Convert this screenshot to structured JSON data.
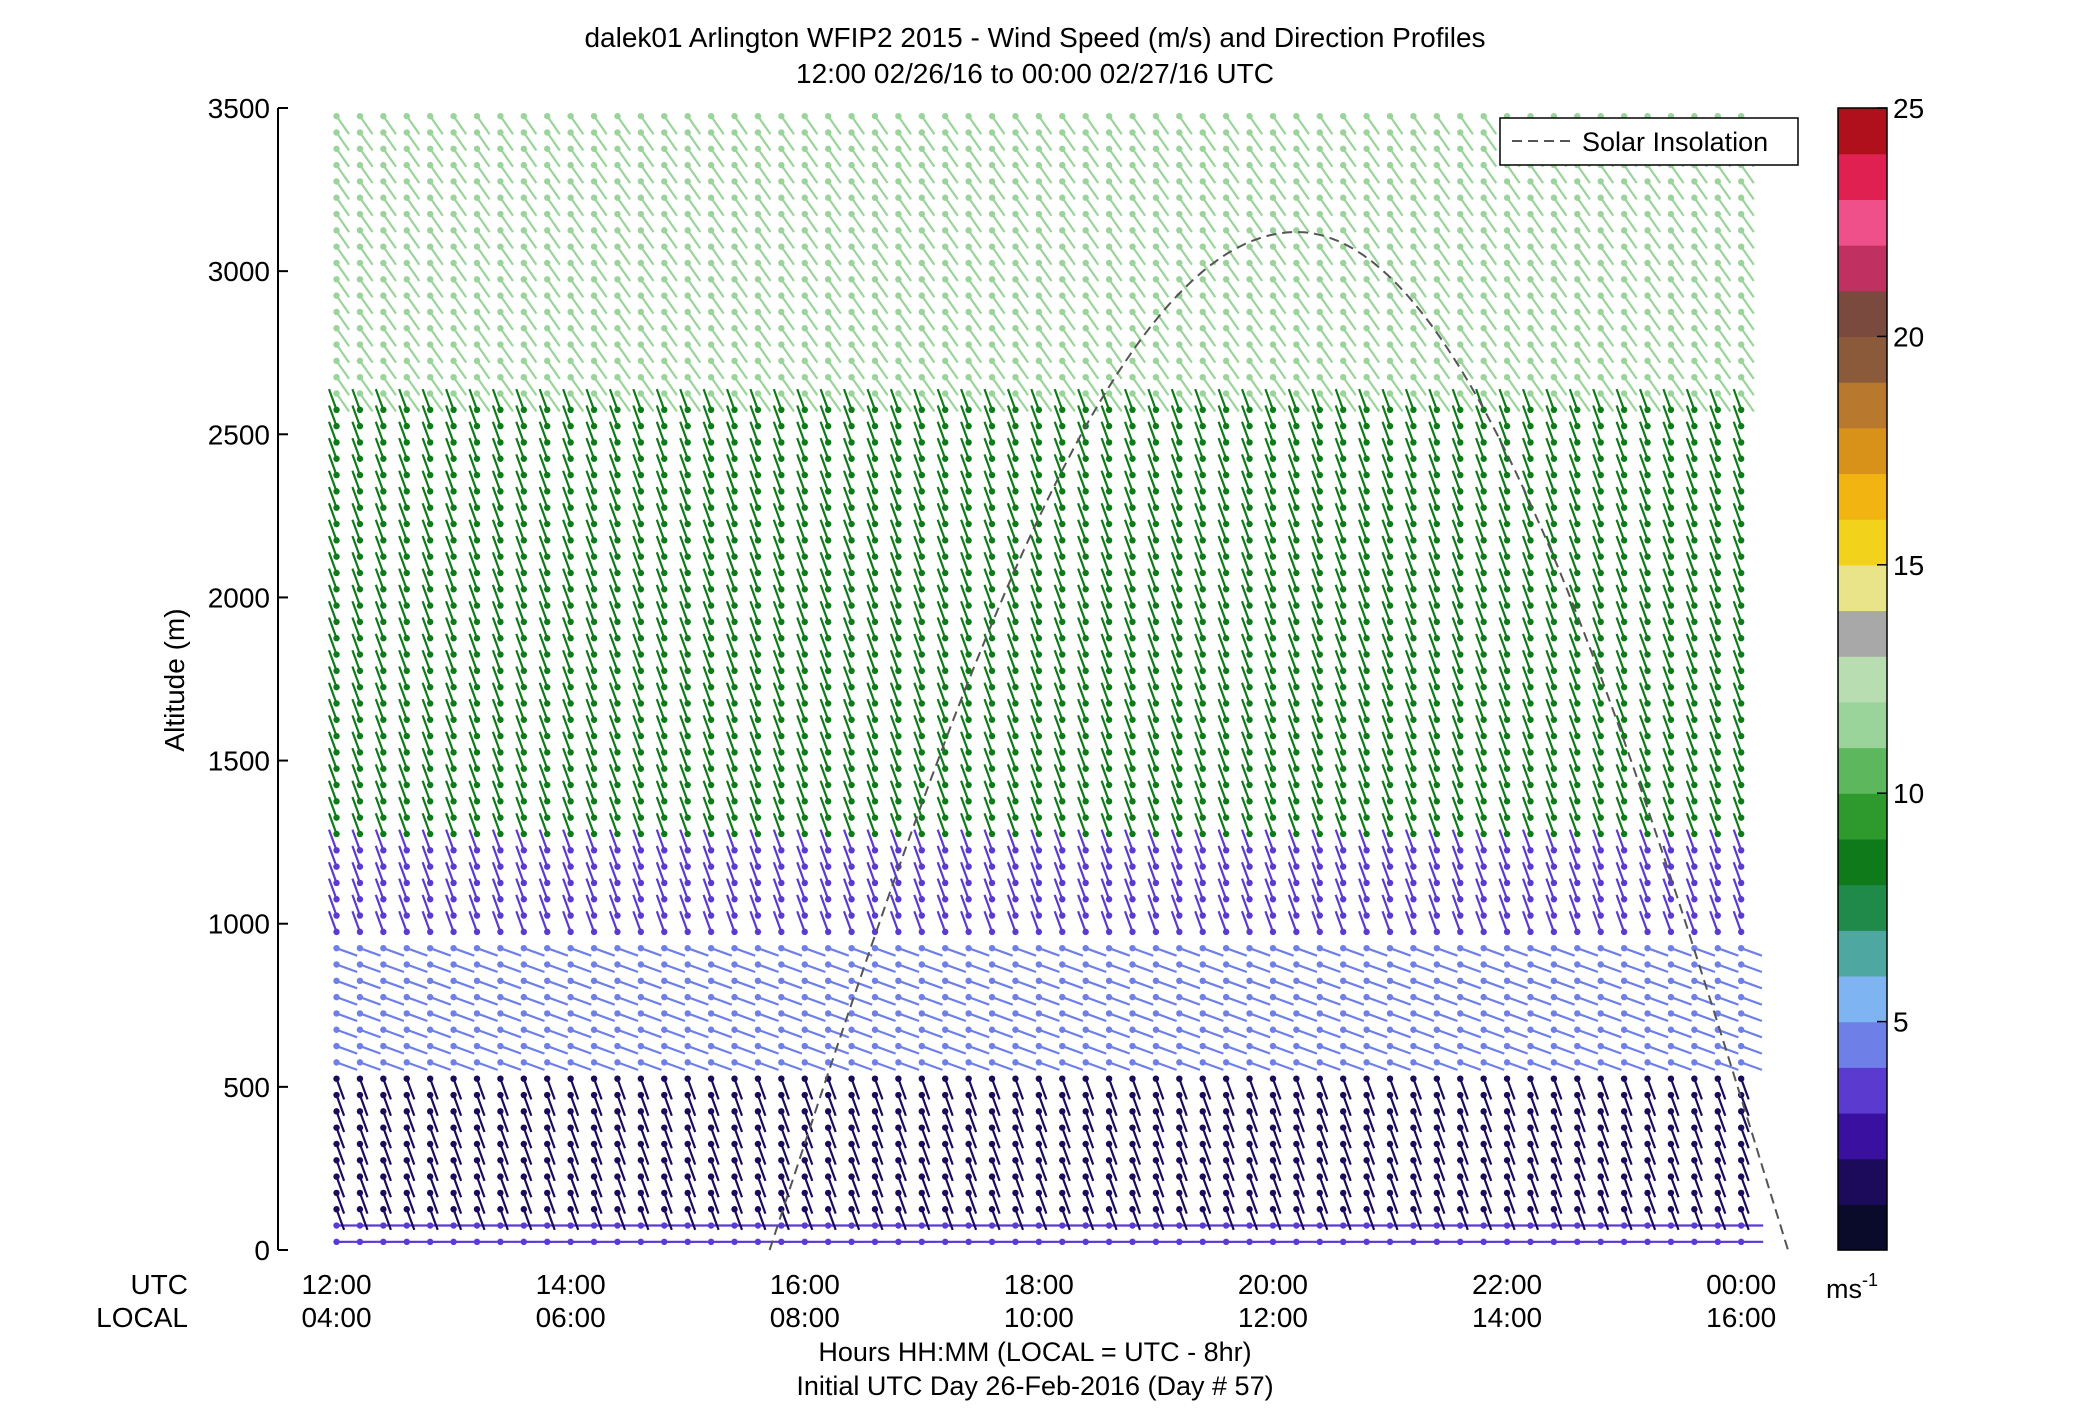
{
  "title": {
    "line1": "dalek01 Arlington WFIP2 2015 - Wind Speed (m/s) and Direction Profiles",
    "line2": "12:00 02/26/16 to 00:00 02/27/16  UTC"
  },
  "legend": {
    "label": "Solar Insolation",
    "placement": "top-right"
  },
  "colorbar": {
    "unit_label": "ms",
    "unit_exponent": "-1",
    "range": [
      0,
      25
    ],
    "ticks": [
      "5",
      "10",
      "15",
      "20",
      "25"
    ],
    "colors": [
      "#0a0a2a",
      "#1c0a5a",
      "#3a10a0",
      "#5b3ad0",
      "#6e7fe8",
      "#7fb4f2",
      "#4ea7a0",
      "#1f8a4a",
      "#0f7a1a",
      "#2e9a2e",
      "#5db85d",
      "#9ad49a",
      "#b8ddb0",
      "#a8a8a8",
      "#e9e48a",
      "#f2d21a",
      "#f2b410",
      "#d8921a",
      "#b8782e",
      "#8a5a3a",
      "#7a4a3e",
      "#c03060",
      "#f0508a",
      "#e02050",
      "#b0101c"
    ]
  },
  "axes": {
    "y_label": "Altitude (m)",
    "x_caption_1": "Hours HH:MM  (LOCAL = UTC - 8hr)",
    "x_caption_2": "Initial UTC Day 26-Feb-2016 (Day # 57)",
    "utc_row_label": "UTC",
    "local_row_label": "LOCAL"
  },
  "chart_data": {
    "type": "wind-barb profile",
    "x_range_utc_hours": [
      11.5,
      24.4
    ],
    "y_range_m": [
      0,
      3500
    ],
    "y_ticks": [
      0,
      500,
      1000,
      1500,
      2000,
      2500,
      3000,
      3500
    ],
    "x_ticks_utc": [
      "12:00",
      "14:00",
      "16:00",
      "18:00",
      "20:00",
      "22:00",
      "00:00"
    ],
    "x_ticks_local": [
      "04:00",
      "06:00",
      "08:00",
      "10:00",
      "12:00",
      "14:00",
      "16:00"
    ],
    "x_tick_hours": [
      12,
      14,
      16,
      18,
      20,
      22,
      24
    ],
    "profile_interval_minutes": 12,
    "gate_spacing_m": 25,
    "solar_insolation_peak_utc_hour": 20.2,
    "solar_insolation_peak_altitude_m": 3120,
    "solar_insolation_start_utc_hour": 15.7,
    "solar_insolation_end_utc_hour": 24.4,
    "layers": [
      {
        "from_m": 0,
        "to_m": 120,
        "speed_ms": 3.5,
        "direction_deg": 270
      },
      {
        "from_m": 120,
        "to_m": 550,
        "speed_ms": 1.5,
        "direction_deg": 200
      },
      {
        "from_m": 550,
        "to_m": 950,
        "speed_ms": 4.8,
        "direction_deg": 250
      },
      {
        "from_m": 950,
        "to_m": 1250,
        "speed_ms": 3.5,
        "direction_deg": 20
      },
      {
        "from_m": 1250,
        "to_m": 2600,
        "speed_ms": 8.5,
        "direction_deg": 20
      },
      {
        "from_m": 2600,
        "to_m": 3500,
        "speed_ms": 11.5,
        "direction_deg": 215
      }
    ]
  }
}
